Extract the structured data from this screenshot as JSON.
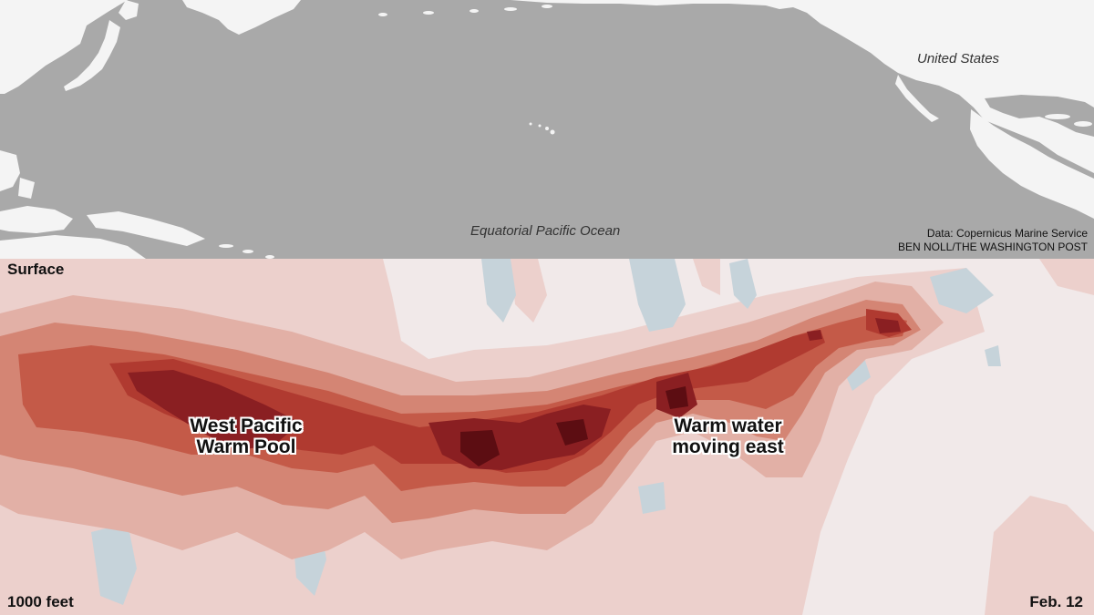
{
  "map": {
    "place_labels": [
      {
        "text": "United States"
      },
      {
        "text": "Equatorial Pacific Ocean"
      }
    ],
    "source": "Data: Copernicus Marine Service",
    "credit": "BEN NOLL/THE WASHINGTON POST",
    "ocean_color": "#a9a9a9",
    "land_color": "#f4f4f4"
  },
  "section": {
    "top_label": "Surface",
    "bottom_label": "1000 feet",
    "date_label": "Feb. 12",
    "annotations": [
      {
        "line1": "West Pacific",
        "line2": "Warm Pool"
      },
      {
        "line1": "Warm water",
        "line2": "moving east"
      }
    ],
    "palette": {
      "background": "#f1e9e9",
      "warm": [
        "#ecd0cc",
        "#e2b0a6",
        "#d48574",
        "#c45a48",
        "#b03a30",
        "#8a1f22",
        "#5c0d12"
      ],
      "cool": "#c6d3da"
    }
  }
}
